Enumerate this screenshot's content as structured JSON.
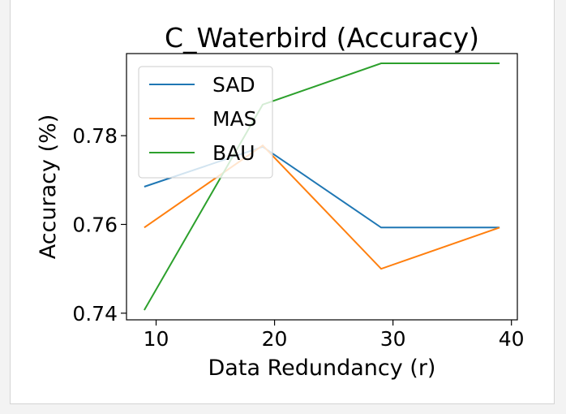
{
  "chart_data": {
    "type": "line",
    "title": "C_Waterbird (Accuracy)",
    "xlabel": "Data Redundancy (r)",
    "ylabel": "Accuracy (%)",
    "x": [
      9,
      19,
      29,
      39
    ],
    "xlim": [
      7.5,
      40.5
    ],
    "ylim": [
      0.7385,
      0.7985
    ],
    "xticks": [
      10,
      20,
      30,
      40
    ],
    "yticks": [
      0.74,
      0.76,
      0.78
    ],
    "xtick_labels": [
      "10",
      "20",
      "30",
      "40"
    ],
    "ytick_labels": [
      "0.74",
      "0.76",
      "0.78"
    ],
    "grid": false,
    "legend_position": "upper left",
    "series": [
      {
        "name": "SAD",
        "color": "#1f77b4",
        "values": [
          0.7685,
          0.7775,
          0.7593,
          0.7593
        ]
      },
      {
        "name": "MAS",
        "color": "#ff7f0e",
        "values": [
          0.7593,
          0.7778,
          0.75,
          0.7593
        ]
      },
      {
        "name": "BAU",
        "color": "#2ca02c",
        "values": [
          0.7407,
          0.787,
          0.7963,
          0.7963
        ]
      }
    ]
  }
}
